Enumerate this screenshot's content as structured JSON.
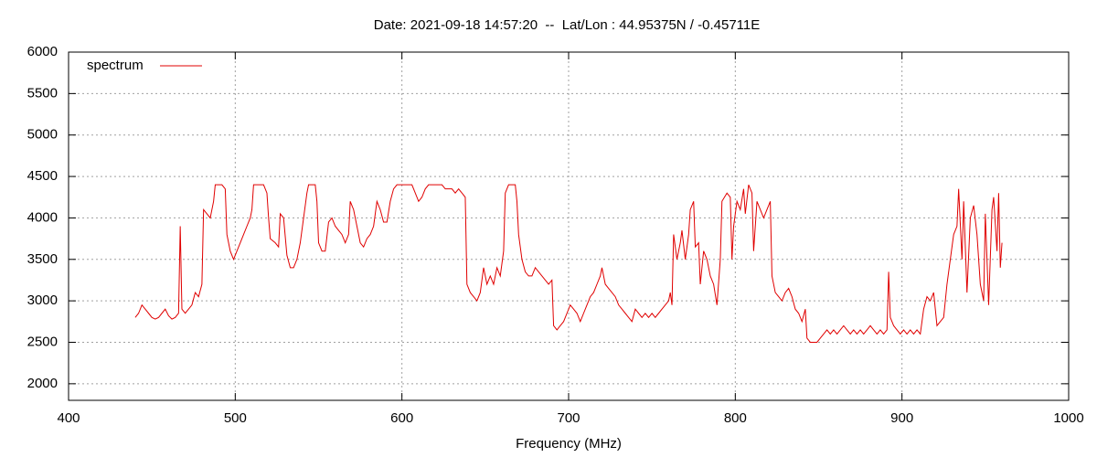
{
  "chart_data": {
    "type": "line",
    "title": "Date: 2021-09-18 14:57:20  --  Lat/Lon : 44.95375N / -0.45711E",
    "x_label": "Frequency (MHz)",
    "xlim": [
      400,
      1000
    ],
    "xticks": [
      400,
      500,
      600,
      700,
      800,
      900,
      1000
    ],
    "ylim": [
      1800,
      6000
    ],
    "yticks": [
      2000,
      2500,
      3000,
      3500,
      4000,
      4500,
      5000,
      5500,
      6000
    ],
    "grid": true,
    "legend": "top-left",
    "x": [
      440,
      442,
      444,
      446,
      448,
      450,
      452,
      454,
      456,
      458,
      460,
      462,
      464,
      466,
      467,
      468,
      470,
      472,
      474,
      476,
      478,
      480,
      481,
      483,
      485,
      487,
      488,
      492,
      494,
      495,
      497,
      499,
      501,
      503,
      505,
      507,
      509,
      510,
      511,
      517,
      519,
      520,
      521,
      524,
      526,
      527,
      529,
      531,
      533,
      535,
      537,
      539,
      541,
      543,
      544,
      548,
      549,
      550,
      552,
      554,
      556,
      558,
      560,
      562,
      564,
      566,
      568,
      569,
      571,
      573,
      575,
      577,
      579,
      581,
      583,
      585,
      587,
      589,
      591,
      593,
      595,
      597,
      606,
      608,
      610,
      612,
      614,
      616,
      624,
      626,
      630,
      632,
      634,
      636,
      638,
      639,
      641,
      643,
      645,
      647,
      649,
      651,
      653,
      655,
      657,
      659,
      661,
      662,
      664,
      668,
      669,
      670,
      672,
      674,
      676,
      678,
      680,
      682,
      684,
      686,
      688,
      690,
      691,
      693,
      695,
      697,
      699,
      701,
      703,
      705,
      707,
      709,
      711,
      713,
      715,
      717,
      719,
      720,
      722,
      724,
      726,
      728,
      730,
      732,
      734,
      736,
      738,
      740,
      742,
      744,
      746,
      748,
      750,
      752,
      754,
      756,
      758,
      760,
      761,
      762,
      763,
      765,
      767,
      768,
      770,
      772,
      773,
      775,
      776,
      778,
      779,
      781,
      783,
      785,
      787,
      789,
      791,
      792,
      795,
      797,
      798,
      799,
      801,
      803,
      805,
      806,
      808,
      810,
      811,
      813,
      815,
      817,
      819,
      821,
      822,
      824,
      826,
      828,
      830,
      832,
      834,
      836,
      838,
      840,
      842,
      843,
      845,
      847,
      849,
      851,
      853,
      855,
      857,
      859,
      861,
      863,
      865,
      867,
      869,
      871,
      873,
      875,
      877,
      879,
      881,
      883,
      885,
      887,
      889,
      891,
      892,
      893,
      895,
      897,
      899,
      901,
      903,
      905,
      907,
      909,
      911,
      913,
      915,
      917,
      919,
      921,
      923,
      925,
      927,
      929,
      931,
      933,
      934,
      936,
      937,
      939,
      941,
      943,
      945,
      947,
      949,
      950,
      952,
      954,
      955,
      957,
      958,
      959,
      960
    ],
    "series": [
      {
        "name": "spectrum",
        "color": "#e00000",
        "values": [
          2800,
          2850,
          2950,
          2900,
          2850,
          2800,
          2780,
          2800,
          2850,
          2900,
          2820,
          2780,
          2800,
          2850,
          3900,
          2900,
          2850,
          2900,
          2950,
          3100,
          3050,
          3200,
          4100,
          4050,
          4000,
          4200,
          4400,
          4400,
          4350,
          3800,
          3600,
          3500,
          3600,
          3700,
          3800,
          3900,
          4000,
          4100,
          4400,
          4400,
          4300,
          4000,
          3750,
          3700,
          3650,
          4050,
          4000,
          3550,
          3400,
          3400,
          3500,
          3700,
          4000,
          4300,
          4400,
          4400,
          4200,
          3700,
          3600,
          3600,
          3950,
          4000,
          3900,
          3850,
          3800,
          3700,
          3800,
          4200,
          4100,
          3900,
          3700,
          3650,
          3750,
          3800,
          3900,
          4200,
          4100,
          3950,
          3950,
          4200,
          4350,
          4400,
          4400,
          4300,
          4200,
          4250,
          4350,
          4400,
          4400,
          4350,
          4350,
          4300,
          4350,
          4300,
          4250,
          3200,
          3100,
          3050,
          3000,
          3100,
          3400,
          3200,
          3300,
          3200,
          3400,
          3300,
          3600,
          4300,
          4400,
          4400,
          4200,
          3800,
          3500,
          3350,
          3300,
          3300,
          3400,
          3350,
          3300,
          3250,
          3200,
          3250,
          2700,
          2650,
          2700,
          2750,
          2850,
          2950,
          2900,
          2850,
          2750,
          2850,
          2950,
          3050,
          3100,
          3200,
          3300,
          3400,
          3200,
          3150,
          3100,
          3050,
          2950,
          2900,
          2850,
          2800,
          2750,
          2900,
          2850,
          2800,
          2850,
          2800,
          2850,
          2800,
          2850,
          2900,
          2950,
          3000,
          3100,
          2950,
          3800,
          3500,
          3700,
          3850,
          3500,
          3800,
          4100,
          4200,
          3650,
          3700,
          3200,
          3600,
          3500,
          3300,
          3200,
          2950,
          3500,
          4200,
          4300,
          4250,
          3500,
          3900,
          4200,
          4100,
          4350,
          4050,
          4400,
          4300,
          3600,
          4200,
          4100,
          4000,
          4100,
          4200,
          3300,
          3100,
          3050,
          3000,
          3100,
          3150,
          3050,
          2900,
          2850,
          2750,
          2900,
          2550,
          2500,
          2500,
          2500,
          2550,
          2600,
          2650,
          2600,
          2650,
          2600,
          2650,
          2700,
          2650,
          2600,
          2650,
          2600,
          2650,
          2600,
          2650,
          2700,
          2650,
          2600,
          2650,
          2600,
          2650,
          3350,
          2800,
          2700,
          2650,
          2600,
          2650,
          2600,
          2650,
          2600,
          2650,
          2600,
          2900,
          3050,
          3000,
          3100,
          2700,
          2750,
          2800,
          3200,
          3500,
          3800,
          3900,
          4350,
          3500,
          4200,
          3100,
          4000,
          4150,
          3800,
          3200,
          3000,
          4050,
          2950,
          4100,
          4250,
          3600,
          4300,
          3400,
          3700
        ]
      }
    ]
  }
}
